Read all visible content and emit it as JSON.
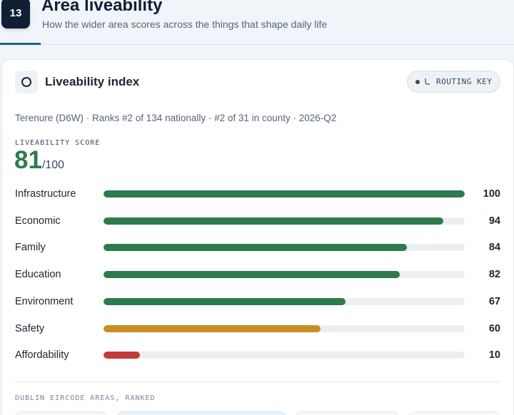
{
  "header": {
    "step": "13",
    "title": "Area liveability",
    "subtitle": "How the wider area scores across the things that shape daily life"
  },
  "card": {
    "title": "Liveability index",
    "routing_key_label": "ROUTING KEY",
    "meta": "Terenure (D6W) · Ranks #2 of 134 nationally · #2 of 31 in county · 2026-Q2",
    "score_label": "LIVEABILITY SCORE",
    "score": "81",
    "score_max": "/100",
    "areas_label": "DUBLIN EIRCODE AREAS, RANKED"
  },
  "colors": {
    "good": "#2e7a4f",
    "medium": "#c98f24",
    "poor": "#c23b3b",
    "track": "#eceef2"
  },
  "categories": [
    {
      "label": "Infrastructure",
      "value": 100,
      "display": "100",
      "status": "good"
    },
    {
      "label": "Economic",
      "value": 94,
      "display": "94",
      "status": "good"
    },
    {
      "label": "Family",
      "value": 84,
      "display": "84",
      "status": "good"
    },
    {
      "label": "Education",
      "value": 82,
      "display": "82",
      "status": "good"
    },
    {
      "label": "Environment",
      "value": 67,
      "display": "67",
      "status": "good"
    },
    {
      "label": "Safety",
      "value": 60,
      "display": "60",
      "status": "medium"
    },
    {
      "label": "Affordability",
      "value": 10,
      "display": "10",
      "status": "poor"
    }
  ]
}
